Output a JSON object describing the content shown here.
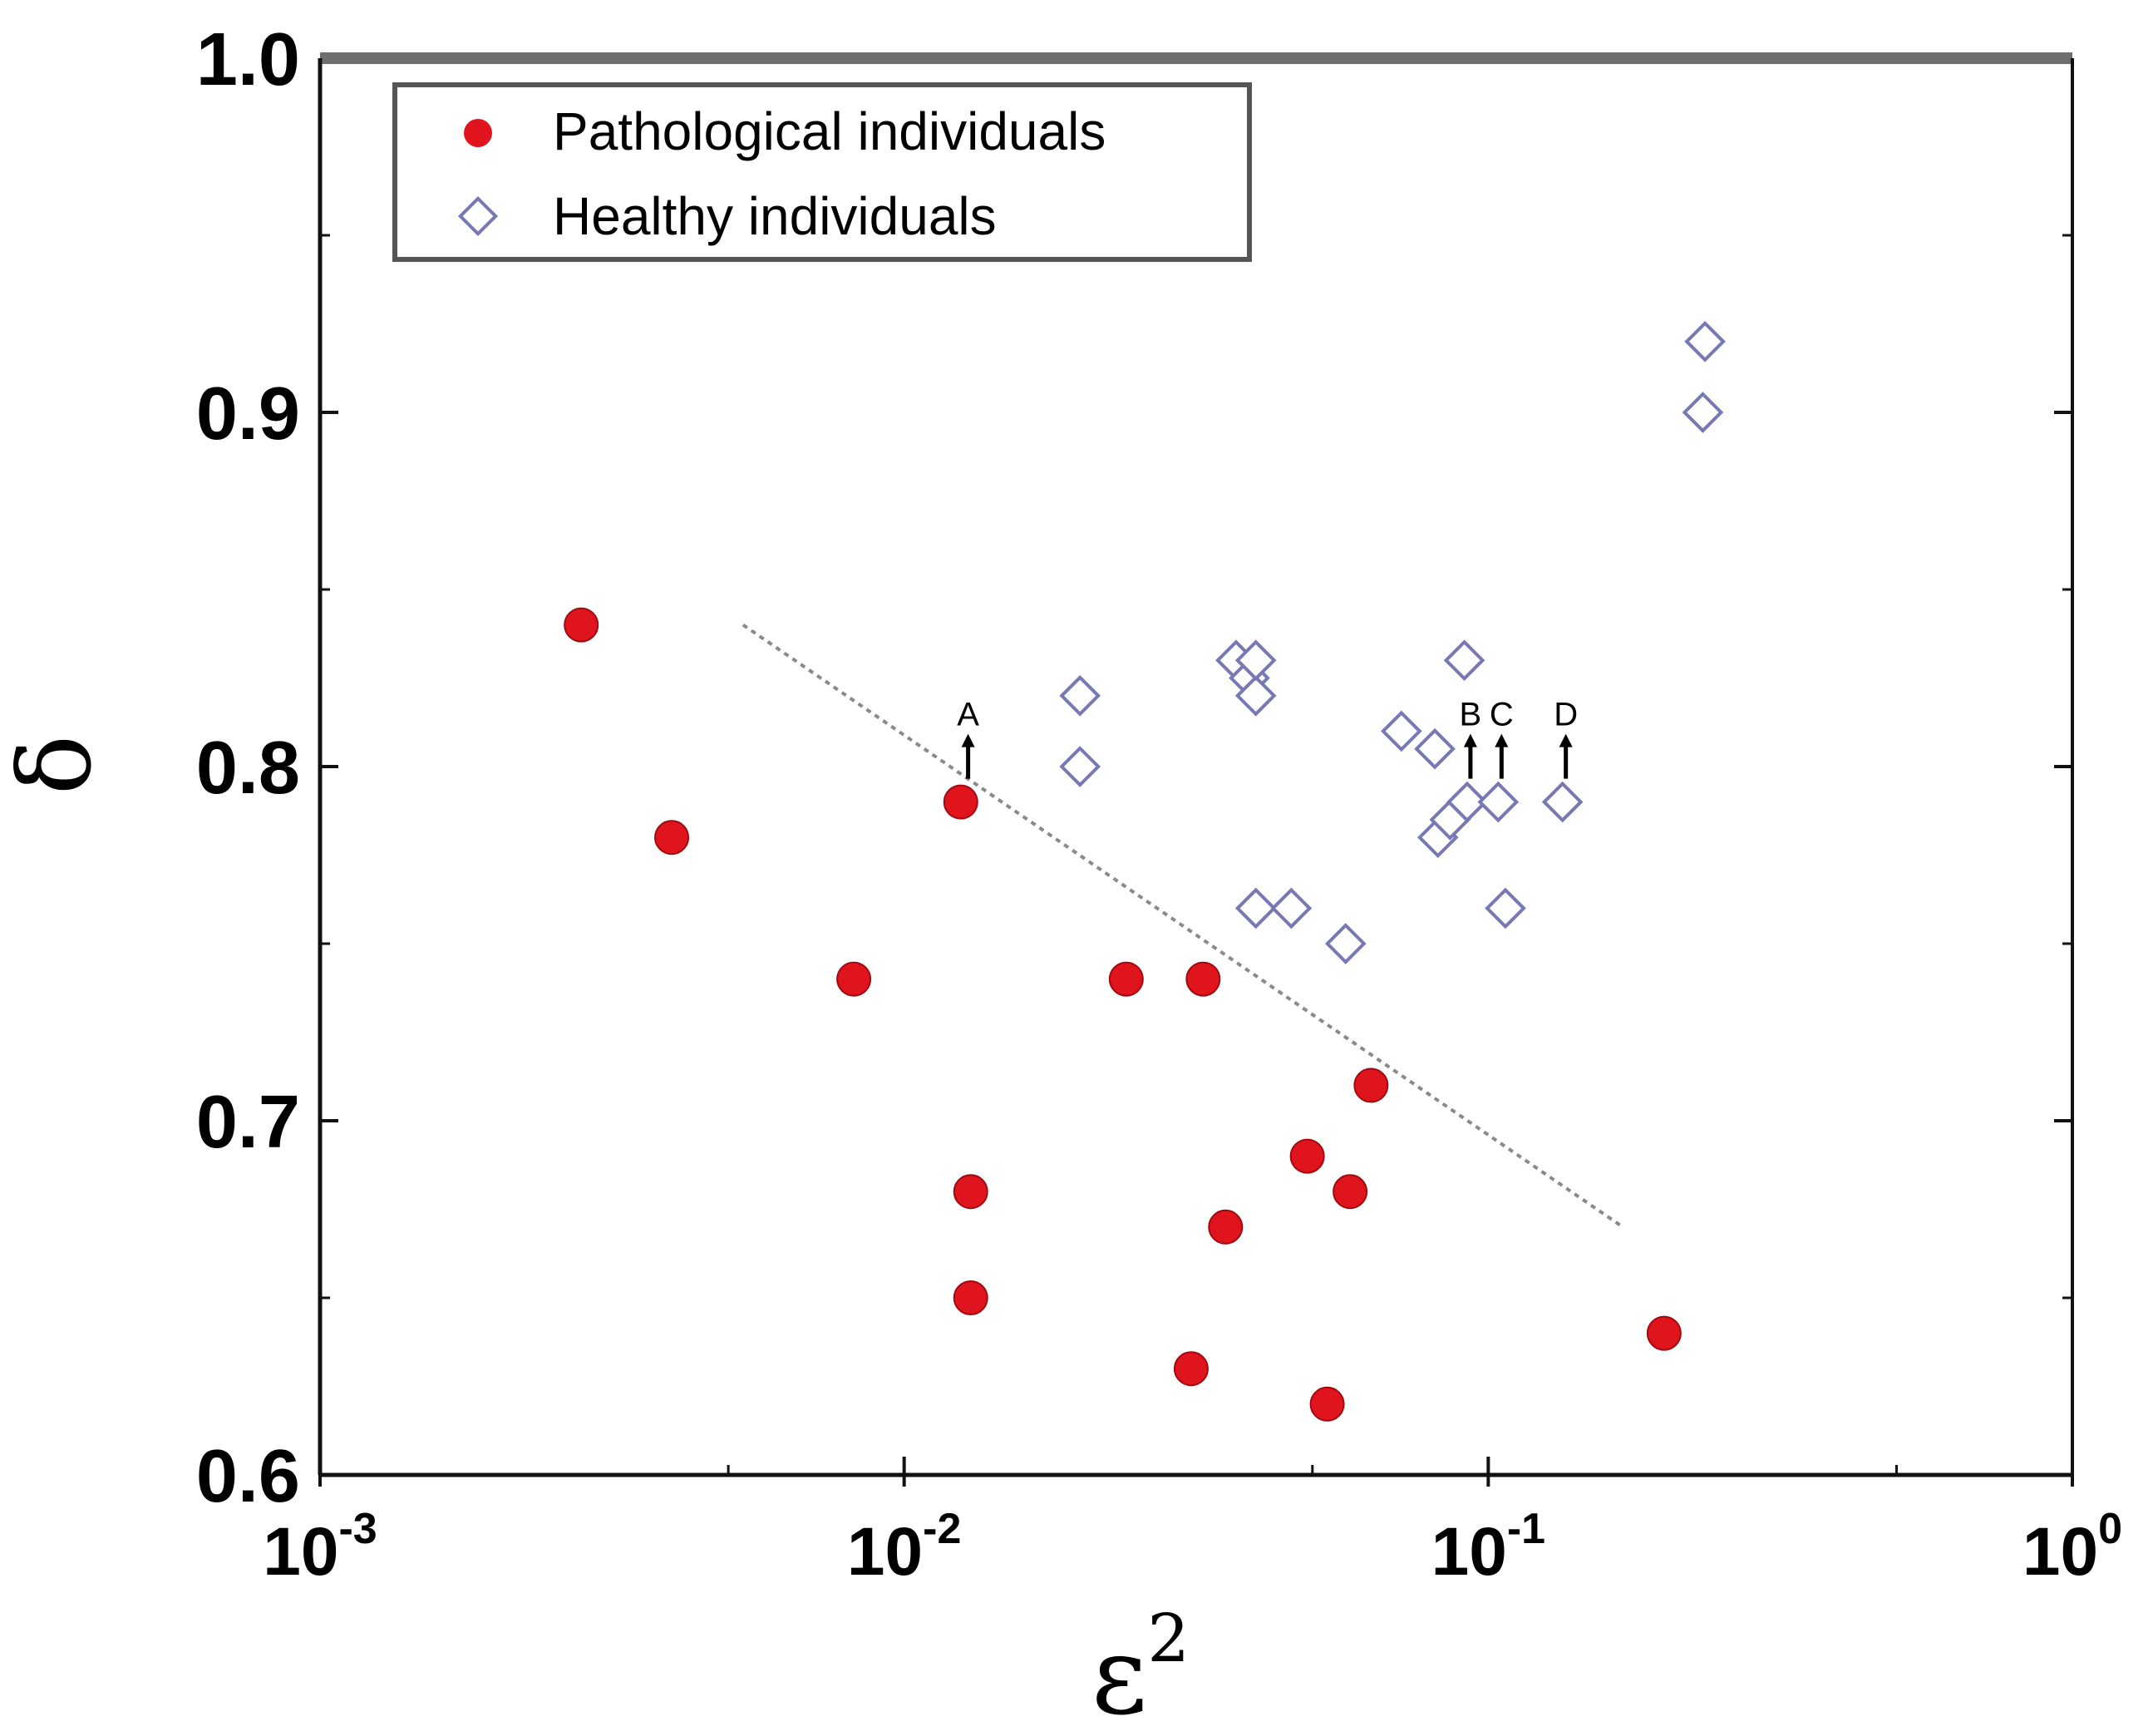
{
  "chart_data": {
    "type": "scatter",
    "xlabel": "ε",
    "xlabel_sup": "2",
    "ylabel": "δ",
    "x_scale": "log",
    "xlim": [
      0.001,
      1
    ],
    "ylim": [
      0.6,
      1.0
    ],
    "x_ticks": [
      {
        "value": 0.001,
        "base": "10",
        "exp": "-3"
      },
      {
        "value": 0.01,
        "base": "10",
        "exp": "-2"
      },
      {
        "value": 0.1,
        "base": "10",
        "exp": "-1"
      },
      {
        "value": 1,
        "base": "10",
        "exp": "0"
      }
    ],
    "y_ticks": [
      {
        "value": 0.6,
        "label": "0.6"
      },
      {
        "value": 0.7,
        "label": "0.7"
      },
      {
        "value": 0.8,
        "label": "0.8"
      },
      {
        "value": 0.9,
        "label": "0.9"
      },
      {
        "value": 1.0,
        "label": "1.0"
      }
    ],
    "legend_position": "top-left",
    "series": [
      {
        "name": "Pathological individuals",
        "marker": "filled-circle",
        "color": "#e0141c",
        "points": [
          {
            "x": 0.0028,
            "y": 0.84
          },
          {
            "x": 0.004,
            "y": 0.78
          },
          {
            "x": 0.0082,
            "y": 0.74
          },
          {
            "x": 0.0125,
            "y": 0.79
          },
          {
            "x": 0.013,
            "y": 0.68
          },
          {
            "x": 0.013,
            "y": 0.65
          },
          {
            "x": 0.024,
            "y": 0.74
          },
          {
            "x": 0.031,
            "y": 0.63
          },
          {
            "x": 0.0325,
            "y": 0.74
          },
          {
            "x": 0.0355,
            "y": 0.67
          },
          {
            "x": 0.049,
            "y": 0.69
          },
          {
            "x": 0.053,
            "y": 0.62
          },
          {
            "x": 0.058,
            "y": 0.68
          },
          {
            "x": 0.063,
            "y": 0.71
          },
          {
            "x": 0.2,
            "y": 0.64
          }
        ]
      },
      {
        "name": "Healthy individuals",
        "marker": "open-diamond",
        "color": "#7878b4",
        "points": [
          {
            "x": 0.02,
            "y": 0.82
          },
          {
            "x": 0.02,
            "y": 0.8
          },
          {
            "x": 0.037,
            "y": 0.83
          },
          {
            "x": 0.039,
            "y": 0.825
          },
          {
            "x": 0.04,
            "y": 0.82
          },
          {
            "x": 0.04,
            "y": 0.83
          },
          {
            "x": 0.04,
            "y": 0.76
          },
          {
            "x": 0.046,
            "y": 0.76
          },
          {
            "x": 0.057,
            "y": 0.75
          },
          {
            "x": 0.071,
            "y": 0.81
          },
          {
            "x": 0.081,
            "y": 0.805
          },
          {
            "x": 0.082,
            "y": 0.78
          },
          {
            "x": 0.086,
            "y": 0.785
          },
          {
            "x": 0.091,
            "y": 0.83
          },
          {
            "x": 0.092,
            "y": 0.79
          },
          {
            "x": 0.104,
            "y": 0.79
          },
          {
            "x": 0.107,
            "y": 0.76
          },
          {
            "x": 0.134,
            "y": 0.79
          },
          {
            "x": 0.235,
            "y": 0.92
          },
          {
            "x": 0.233,
            "y": 0.9
          }
        ]
      }
    ],
    "trend_line": {
      "style": "dotted",
      "points": [
        {
          "x": 0.0053,
          "y": 0.84
        },
        {
          "x": 0.17,
          "y": 0.67
        }
      ]
    },
    "annotations": [
      {
        "label": "A",
        "x": 0.0127,
        "y": 0.79
      },
      {
        "label": "B",
        "x": 0.092,
        "y": 0.79
      },
      {
        "label": "C",
        "x": 0.104,
        "y": 0.79
      },
      {
        "label": "D",
        "x": 0.134,
        "y": 0.79
      }
    ]
  }
}
